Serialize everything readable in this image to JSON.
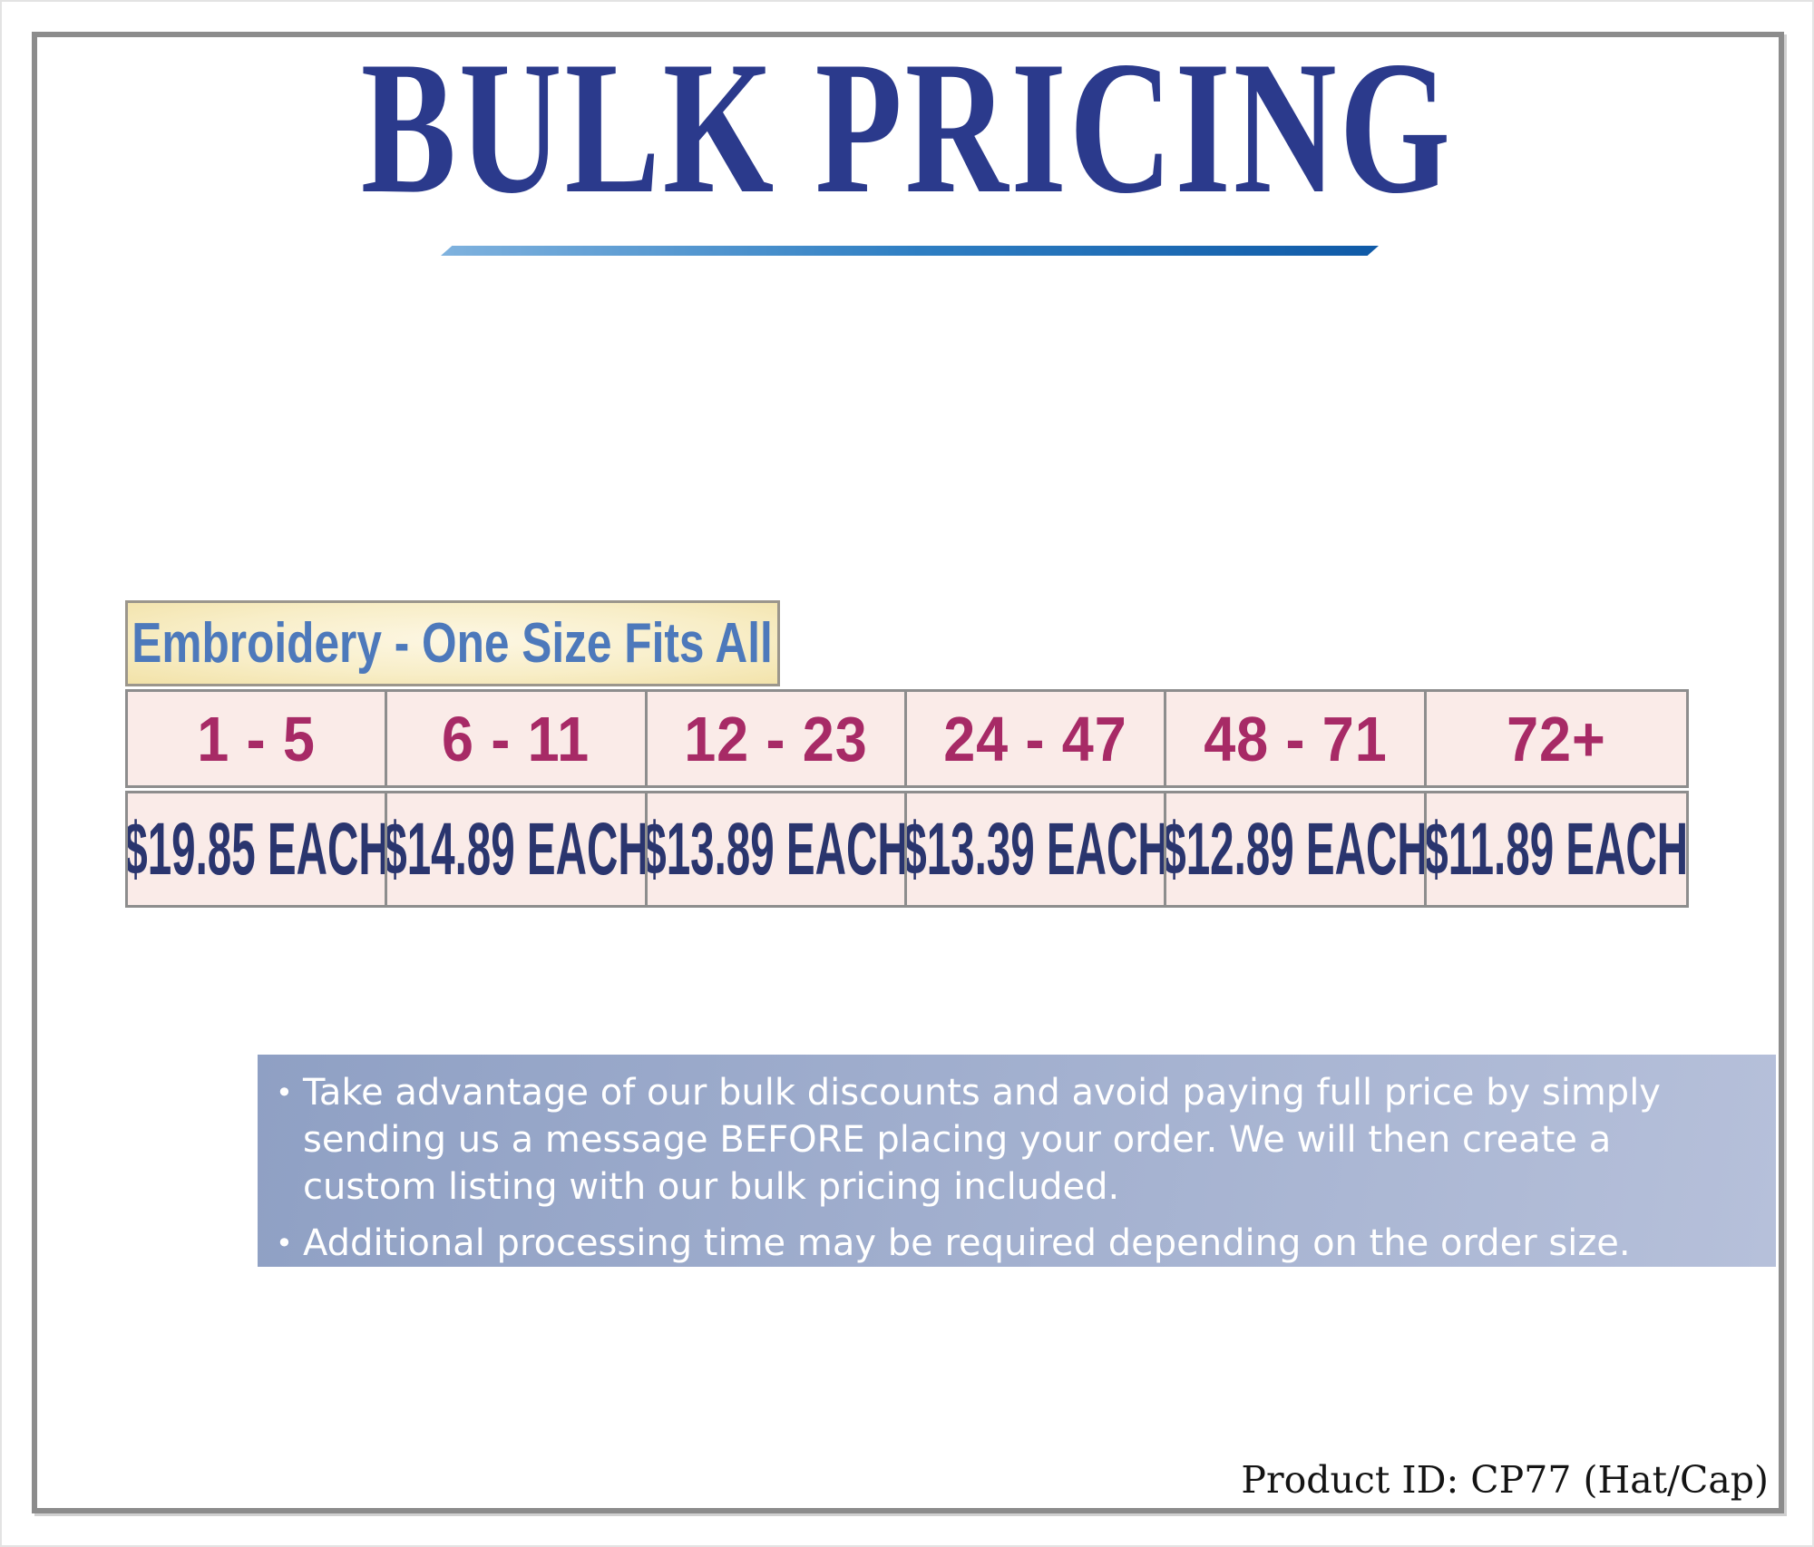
{
  "page": {
    "title": "BULK PRICING",
    "product_id_label": "Product ID: CP77 (Hat/Cap)"
  },
  "pricing_table": {
    "header": "Embroidery - One Size Fits All",
    "tiers": [
      {
        "quantity": "1 - 5",
        "price": "$19.85 EACH"
      },
      {
        "quantity": "6 - 11",
        "price": "$14.89 EACH"
      },
      {
        "quantity": "12 - 23",
        "price": "$13.89 EACH"
      },
      {
        "quantity": "24 - 47",
        "price": "$13.39 EACH"
      },
      {
        "quantity": "48 - 71",
        "price": "$12.89 EACH"
      },
      {
        "quantity": "72+",
        "price": "$11.89 EACH"
      }
    ]
  },
  "notes": {
    "bullet_glyph": "•",
    "bullet1": "Take advantage of our bulk discounts and avoid paying full price by simply\nsending us a message BEFORE placing your order. We will then create a\ncustom listing with our bulk pricing included.",
    "bullet2": "Additional processing time may be required depending on the order size."
  },
  "colors": {
    "title": "#2b3a8c",
    "underline_start": "#7fb2de",
    "underline_end": "#0f5aa7",
    "header_text": "#4d79bb",
    "header_border": "#9b968c",
    "header_bg_center": "#fdf7e4",
    "header_bg_edge": "#f2e2a8",
    "cell_bg": "#faebe8",
    "border": "#8d8d8d",
    "qty_text": "#a72a66",
    "price_text": "#2a356e",
    "notes_bg_start": "#8fa0c4",
    "notes_bg_end": "#b6c0da",
    "notes_text": "#ffffff",
    "frame": "#8c8c8c",
    "product_id_text": "#141414"
  }
}
